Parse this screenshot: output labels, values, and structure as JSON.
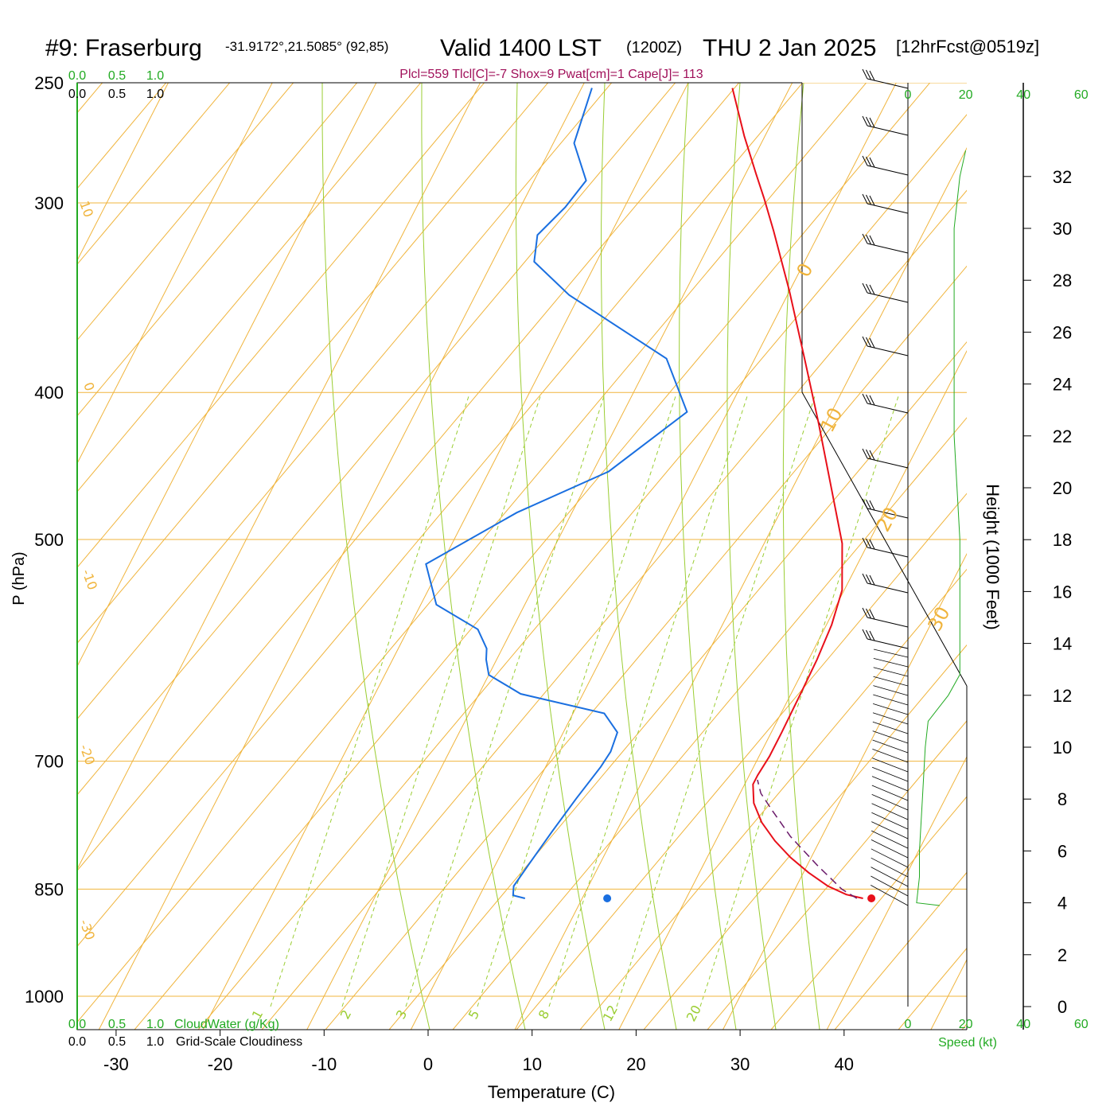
{
  "header": {
    "station_id": "#9: Fraserburg",
    "coords": "-31.9172°,21.5085° (92,85)",
    "valid": "Valid 1400 LST",
    "utc": "(1200Z)",
    "date": "THU 2 Jan 2025",
    "forecast": "[12hrFcst@0519z]",
    "indices": "Plcl=559 Tlcl[C]=-7 Shox=9 Pwat[cm]=1 Cape[J]= 113"
  },
  "colors": {
    "temperature": "#e8101a",
    "dewpoint": "#1a6fe0",
    "parcel": "#6a1a6a",
    "isotherm": "#f0b43c",
    "dry_adiabat": "#9acd32",
    "mixing_ratio": "#9acd32",
    "isobar": "#f0b43c",
    "indices_text": "#a0105a",
    "green_axis": "#22aa22",
    "height_profile": "#22aa22"
  },
  "axes": {
    "xlabel": "Temperature (C)",
    "ylabel": "P (hPa)",
    "x_ticks": [
      "-30",
      "-20",
      "-10",
      "0",
      "10",
      "20",
      "30",
      "40"
    ],
    "p_ticks": [
      "250",
      "300",
      "400",
      "500",
      "700",
      "850",
      "1000"
    ],
    "height_label": "Height (1000 Feet)",
    "height_ticks": [
      "0",
      "2",
      "4",
      "6",
      "8",
      "10",
      "12",
      "14",
      "16",
      "18",
      "20",
      "22",
      "24",
      "26",
      "28",
      "30",
      "32"
    ],
    "speed_label": "Speed (kt)",
    "speed_ticks": [
      "0",
      "20",
      "40",
      "60"
    ],
    "cloud_scale": [
      "0.0",
      "0.5",
      "1.0"
    ],
    "cloudwater_label": "CloudWater (g/Kg)",
    "cloudiness_label": "Grid-Scale Cloudiness"
  },
  "isotherm_labels": [
    "10",
    "0",
    "-10",
    "-20",
    "-30",
    "0",
    "10",
    "20",
    "30"
  ],
  "mixing_ratio_labels": [
    "1",
    "2",
    "3",
    "5",
    "8",
    "12",
    "20"
  ],
  "chart_data": {
    "type": "line",
    "y_scale": "log-pressure",
    "ylim_hpa": [
      1000,
      250
    ],
    "xlim_c": [
      -30,
      40
    ],
    "series": [
      {
        "name": "temperature",
        "points_t_p": [
          [
            37.0,
            862
          ],
          [
            35.2,
            857
          ],
          [
            33.0,
            846
          ],
          [
            30.5,
            829
          ],
          [
            28.0,
            810
          ],
          [
            25.7,
            790
          ],
          [
            23.5,
            768
          ],
          [
            21.8,
            746
          ],
          [
            20.8,
            725
          ],
          [
            20.8,
            715
          ],
          [
            21.0,
            695
          ],
          [
            21.0,
            670
          ],
          [
            20.9,
            630
          ],
          [
            20.8,
            600
          ],
          [
            20.5,
            569
          ],
          [
            19.8,
            540
          ],
          [
            17.5,
            503
          ],
          [
            13.3,
            458
          ],
          [
            9.3,
            419
          ],
          [
            4.9,
            381
          ],
          [
            0.0,
            343
          ],
          [
            -4.5,
            313
          ],
          [
            -7.0,
            298
          ],
          [
            -9.0,
            287
          ],
          [
            -12.0,
            271
          ],
          [
            -15.5,
            252
          ]
        ]
      },
      {
        "name": "dewpoint",
        "points_t_p": [
          [
            4.5,
            862
          ],
          [
            3.2,
            858
          ],
          [
            2.8,
            846
          ],
          [
            3.2,
            818
          ],
          [
            3.8,
            779
          ],
          [
            4.5,
            741
          ],
          [
            5.3,
            706
          ],
          [
            5.5,
            690
          ],
          [
            5.2,
            670
          ],
          [
            3.0,
            651
          ],
          [
            -6.0,
            632
          ],
          [
            -10.0,
            614
          ],
          [
            -11.0,
            600
          ],
          [
            -11.5,
            590
          ],
          [
            -13.3,
            573
          ],
          [
            -18.5,
            552
          ],
          [
            -21.5,
            519
          ],
          [
            -15.3,
            480
          ],
          [
            -8.5,
            451
          ],
          [
            -3.9,
            412
          ],
          [
            -8.5,
            380
          ],
          [
            -21.0,
            345
          ],
          [
            -26.0,
            328
          ],
          [
            -27.0,
            315
          ],
          [
            -25.7,
            302
          ],
          [
            -25.0,
            290
          ],
          [
            -28.0,
            274
          ],
          [
            -29.0,
            252
          ]
        ]
      },
      {
        "name": "parcel",
        "points_t_p": [
          [
            36.4,
            862
          ],
          [
            34.5,
            850
          ],
          [
            31.0,
            820
          ],
          [
            27.0,
            785
          ],
          [
            24.0,
            755
          ],
          [
            22.0,
            735
          ],
          [
            21.0,
            720
          ]
        ]
      }
    ],
    "surface_markers": [
      {
        "name": "surface-temperature",
        "t": 37.8,
        "p": 862
      },
      {
        "name": "surface-dewpoint",
        "t": 12.4,
        "p": 862
      }
    ],
    "wind_speed_kt_by_height_kft": [
      [
        4,
        3
      ],
      [
        5,
        4
      ],
      [
        6,
        4
      ],
      [
        8,
        5
      ],
      [
        10,
        6
      ],
      [
        11,
        7
      ],
      [
        12,
        14
      ],
      [
        12.8,
        18
      ],
      [
        14,
        18
      ],
      [
        16,
        18
      ],
      [
        18,
        18
      ],
      [
        20,
        17
      ],
      [
        22,
        16
      ],
      [
        24,
        16
      ],
      [
        26,
        16
      ],
      [
        28,
        16
      ],
      [
        30,
        16
      ],
      [
        31,
        17
      ],
      [
        32,
        18
      ],
      [
        33,
        20
      ]
    ]
  }
}
